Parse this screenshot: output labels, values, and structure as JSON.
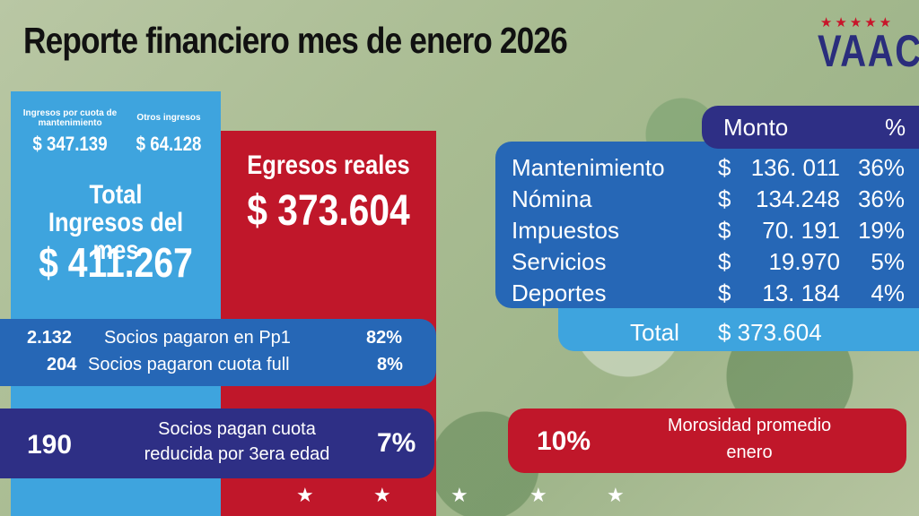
{
  "title": "Reporte financiero mes de enero 2026",
  "logo": {
    "stars": "★★★★★",
    "text": "VAAC"
  },
  "ingresos": {
    "cuota_label": "Ingresos por cuota de mantenimiento",
    "cuota_value": "$ 347.139",
    "otros_label": "Otros ingresos",
    "otros_value": "$ 64.128",
    "total_label_line1": "Total",
    "total_label_line2": "Ingresos del mes",
    "total_value": "$ 411.267"
  },
  "egresos": {
    "label": "Egresos reales",
    "value": "$ 373.604"
  },
  "socios": [
    {
      "count": "2.132",
      "label": "Socios pagaron en Pp1",
      "pct": "82%"
    },
    {
      "count": "204",
      "label": "Socios pagaron cuota full",
      "pct": "8%"
    }
  ],
  "reducida": {
    "count": "190",
    "line1": "Socios pagan cuota",
    "line2": "reducida por 3era edad",
    "pct": "7%"
  },
  "morosidad": {
    "pct": "10%",
    "line1": "Morosidad promedio",
    "line2": "enero"
  },
  "tabla": {
    "header_monto": "Monto",
    "header_pct": "%",
    "rows": [
      {
        "name": "Mantenimiento",
        "currency": "$",
        "amount": "136. 011",
        "pct": "36%"
      },
      {
        "name": "Nómina",
        "currency": "$",
        "amount": "134.248",
        "pct": "36%"
      },
      {
        "name": "Impuestos",
        "currency": "$",
        "amount": "70. 191",
        "pct": "19%"
      },
      {
        "name": "Servicios",
        "currency": "$",
        "amount": "19.970",
        "pct": "5%"
      },
      {
        "name": "Deportes",
        "currency": "$",
        "amount": "13. 184",
        "pct": "4%"
      }
    ],
    "total_label": "Total",
    "total_value": "$ 373.604"
  },
  "bottom_stars": [
    "★",
    "★",
    "★",
    "★",
    "★"
  ]
}
